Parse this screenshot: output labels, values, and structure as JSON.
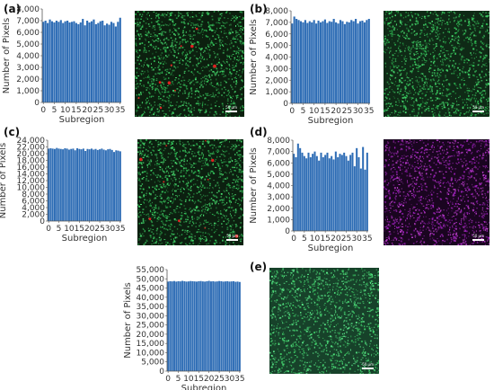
{
  "panels": [
    {
      "letter": "(a)",
      "image": {
        "base": "#0c200f",
        "dots": [
          "#2fbf55",
          "#4ade70"
        ],
        "accents": [
          "#e02020"
        ],
        "scale_label": "50 μm"
      }
    },
    {
      "letter": "(b)",
      "image": {
        "base": "#0f2a16",
        "dots": [
          "#2fbf55",
          "#4ade70"
        ],
        "accents": [],
        "scale_label": "50 μm"
      }
    },
    {
      "letter": "(c)",
      "image": {
        "base": "#0c2010",
        "dots": [
          "#2fbf55",
          "#4ade70"
        ],
        "accents": [
          "#e02020"
        ],
        "scale_label": "50 μm"
      }
    },
    {
      "letter": "(d)",
      "image": {
        "base": "#1a0520",
        "dots": [
          "#c040d0",
          "#a020c0"
        ],
        "accents": [],
        "scale_label": "50 μm"
      }
    },
    {
      "letter": "(e)",
      "image": {
        "base": "#17422a",
        "dots": [
          "#3fcf68",
          "#5ce88a"
        ],
        "accents": [],
        "scale_label": "50 μm"
      }
    }
  ],
  "colors": {
    "bar": "#2e6db5",
    "bar_dark": "#1d5aa0"
  },
  "chart_data": [
    {
      "panel": "(a)",
      "type": "bar",
      "xlabel": "Subregion",
      "ylabel": "Number of Pixels",
      "ylim": [
        0,
        8000
      ],
      "yticks": [
        "0",
        "1,000",
        "2,000",
        "3,000",
        "4,000",
        "5,000",
        "6,000",
        "7,000",
        "8,000"
      ],
      "xticks": [
        "0",
        "5",
        "10",
        "15",
        "20",
        "25",
        "30",
        "35"
      ],
      "values": [
        6900,
        7000,
        6800,
        7100,
        6950,
        6850,
        7000,
        6900,
        7050,
        6800,
        6950,
        7000,
        6850,
        6900,
        6950,
        6800,
        6700,
        6850,
        7150,
        6600,
        7000,
        6850,
        6950,
        7100,
        6700,
        6800,
        6950,
        7000,
        6600,
        6750,
        6650,
        6900,
        6800,
        6500,
        6900,
        7250
      ]
    },
    {
      "panel": "(b)",
      "type": "bar",
      "xlabel": "Subregion",
      "ylabel": "Number of Pixels",
      "ylim": [
        0,
        8000
      ],
      "yticks": [
        "0",
        "1,000",
        "2,000",
        "3,000",
        "4,000",
        "5,000",
        "6,000",
        "7,000",
        "8,000"
      ],
      "xticks": [
        "0",
        "5",
        "10",
        "15",
        "20",
        "25",
        "30",
        "35"
      ],
      "values": [
        6900,
        7500,
        7300,
        7200,
        7100,
        7000,
        7200,
        6950,
        7100,
        7000,
        7200,
        6900,
        7150,
        7000,
        7100,
        7250,
        6950,
        7100,
        7050,
        7300,
        7000,
        6900,
        7200,
        7100,
        6850,
        7050,
        7000,
        7200,
        7100,
        7300,
        6900,
        7100,
        7150,
        7000,
        7200,
        7300
      ]
    },
    {
      "panel": "(c)",
      "type": "bar",
      "xlabel": "Subregion",
      "ylabel": "Number of Pixels",
      "ylim": [
        0,
        24000
      ],
      "yticks": [
        "0",
        "2,000",
        "4,000",
        "6,000",
        "8,000",
        "10,000",
        "12,000",
        "14,000",
        "16,000",
        "18,000",
        "20,000",
        "22,000",
        "24,000"
      ],
      "xticks": [
        "0",
        "5",
        "10",
        "15",
        "20",
        "25",
        "30",
        "35"
      ],
      "values": [
        21500,
        21600,
        21500,
        21400,
        21700,
        21500,
        21400,
        21300,
        21600,
        21500,
        21200,
        21400,
        21500,
        21000,
        21600,
        21400,
        21300,
        21500,
        20800,
        21400,
        21300,
        21500,
        21200,
        21400,
        21100,
        21300,
        21500,
        21200,
        21000,
        21300,
        21400,
        21100,
        20500,
        21000,
        20900,
        20700
      ]
    },
    {
      "panel": "(d)",
      "type": "bar",
      "xlabel": "Subregion",
      "ylabel": "Number of Pixels",
      "ylim": [
        0,
        8000
      ],
      "yticks": [
        "0",
        "1,000",
        "2,000",
        "3,000",
        "4,000",
        "5,000",
        "6,000",
        "7,000",
        "8,000"
      ],
      "xticks": [
        "0",
        "5",
        "10",
        "15",
        "20",
        "25",
        "30",
        "35"
      ],
      "values": [
        6800,
        6500,
        7700,
        7300,
        6900,
        6600,
        6400,
        6900,
        6500,
        6800,
        7000,
        6600,
        6200,
        6900,
        6500,
        6700,
        6900,
        6400,
        6600,
        6300,
        7000,
        6500,
        6800,
        6700,
        6900,
        6600,
        6200,
        6700,
        6900,
        5700,
        7300,
        6500,
        5500,
        7400,
        5400,
        6900
      ]
    },
    {
      "panel": "(e)",
      "type": "bar",
      "xlabel": "Subregion",
      "ylabel": "Number of Pixels",
      "ylim": [
        0,
        55000
      ],
      "yticks": [
        "0",
        "5,000",
        "10,000",
        "15,000",
        "20,000",
        "25,000",
        "30,000",
        "35,000",
        "40,000",
        "45,000",
        "50,000",
        "55,000"
      ],
      "xticks": [
        "0",
        "5",
        "10",
        "15",
        "20",
        "25",
        "30",
        "35"
      ],
      "values": [
        48500,
        48700,
        48600,
        48800,
        48500,
        48700,
        48600,
        48900,
        48700,
        48500,
        48600,
        48800,
        48700,
        48600,
        48500,
        48700,
        48800,
        48600,
        48500,
        48700,
        48900,
        48600,
        48700,
        48500,
        48600,
        48800,
        48700,
        48500,
        48600,
        48700,
        48500,
        48600,
        48700,
        48400,
        48500,
        48300
      ]
    }
  ]
}
